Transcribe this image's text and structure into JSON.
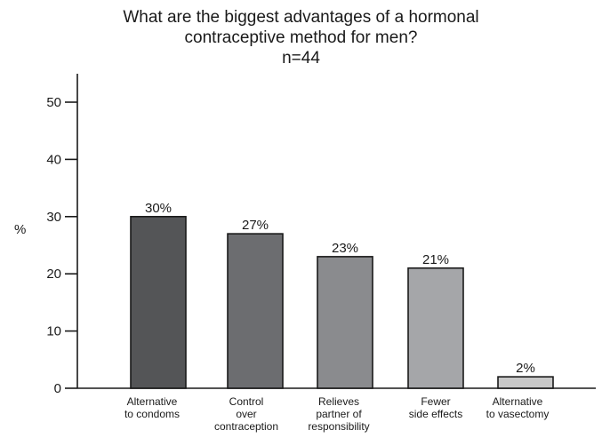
{
  "chart_data": {
    "type": "bar",
    "title_lines": [
      "What are the biggest advantages of a hormonal",
      "contraceptive method for men?"
    ],
    "subtitle": "n=44",
    "ylabel": "%",
    "xlabel": "",
    "ylim": [
      0,
      50
    ],
    "yticks": [
      0,
      10,
      20,
      30,
      40,
      50
    ],
    "grid": false,
    "categories": [
      [
        "Alternative",
        "to condoms"
      ],
      [
        "Control",
        "over",
        "contraception"
      ],
      [
        "Relieves",
        "partner of",
        "responsibility"
      ],
      [
        "Fewer",
        "side effects"
      ],
      [
        "Alternative",
        "to vasectomy"
      ]
    ],
    "values": [
      30,
      27,
      23,
      21,
      2
    ],
    "value_labels": [
      "30%",
      "27%",
      "23%",
      "21%",
      "2%"
    ],
    "bar_colors": [
      "#545557",
      "#6c6d70",
      "#8a8b8e",
      "#a5a6a9",
      "#c8c8c8"
    ]
  }
}
